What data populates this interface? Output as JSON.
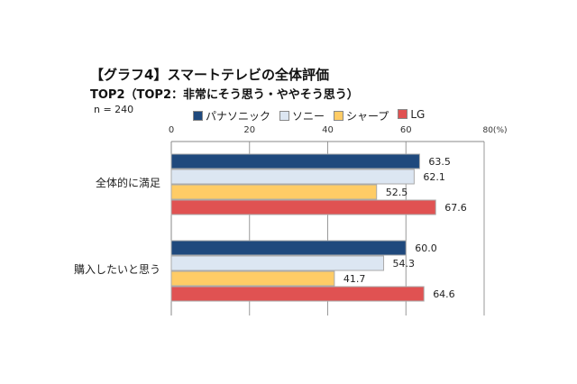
{
  "chart_data": {
    "type": "bar",
    "orientation": "horizontal",
    "title": "【グラフ4】スマートテレビの全体評価",
    "subtitle": "TOP2（TOP2：非常にそう思う・ややそう思う）",
    "note": "n = 240",
    "unit_label": "80(%)",
    "xlim": [
      0,
      80
    ],
    "ticks": [
      "0",
      "20",
      "40",
      "60"
    ],
    "grid": true,
    "legend_position": "top",
    "categories": [
      "全体的に満足",
      "購入したいと思う"
    ],
    "series": [
      {
        "name": "パナソニック",
        "color": "#1f497d",
        "values": [
          63.5,
          60.0
        ]
      },
      {
        "name": "ソニー",
        "color": "#dce6f2",
        "values": [
          62.1,
          54.3
        ]
      },
      {
        "name": "シャープ",
        "color": "#ffcc66",
        "values": [
          52.5,
          41.7
        ]
      },
      {
        "name": "LG",
        "color": "#e05252",
        "values": [
          67.6,
          64.6
        ]
      }
    ]
  }
}
